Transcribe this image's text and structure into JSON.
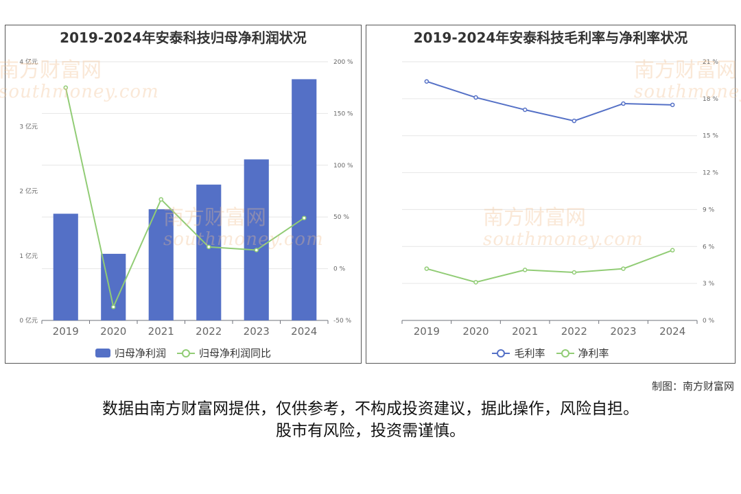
{
  "colors": {
    "bar": "#5470c6",
    "line_green": "#91cc75",
    "line_blue": "#5470c6",
    "grid": "#e6e6e6",
    "axis_text": "#666666"
  },
  "watermark": {
    "name": "南方财富网",
    "domain": "southmoney.com"
  },
  "credit": "制图：南方财富网",
  "disclaimer": {
    "line1": "数据由南方财富网提供，仅供参考，不构成投资建议，据此操作，风险自担。",
    "line2": "股市有风险，投资需谨慎。"
  },
  "chart_data": [
    {
      "type": "bar",
      "title": "2019-2024年安泰科技归母净利润状况",
      "categories": [
        "2019",
        "2020",
        "2021",
        "2022",
        "2023",
        "2024"
      ],
      "legend_position": "bottom",
      "grid": true,
      "y_left": {
        "ticks": [
          "0 亿元",
          "1 亿元",
          "2 亿元",
          "3 亿元",
          "4 亿元"
        ],
        "range": [
          0,
          4
        ]
      },
      "y_right": {
        "ticks": [
          "-50 %",
          "0 %",
          "50 %",
          "100 %",
          "150 %",
          "200 %"
        ],
        "range": [
          -50,
          200
        ]
      },
      "series": [
        {
          "name": "归母净利润",
          "type": "bar",
          "axis": "left",
          "color": "#5470c6",
          "values": [
            1.65,
            1.03,
            1.72,
            2.1,
            2.49,
            3.73
          ]
        },
        {
          "name": "归母净利润同比",
          "type": "line",
          "axis": "right",
          "color": "#91cc75",
          "values": [
            175,
            -37,
            67,
            21,
            18,
            49
          ]
        }
      ]
    },
    {
      "type": "line",
      "title": "2019-2024年安泰科技毛利率与净利率状况",
      "categories": [
        "2019",
        "2020",
        "2021",
        "2022",
        "2023",
        "2024"
      ],
      "legend_position": "bottom",
      "grid": true,
      "y_right": {
        "ticks": [
          "0 %",
          "3 %",
          "6 %",
          "9 %",
          "12 %",
          "15 %",
          "18 %",
          "21 %"
        ],
        "range": [
          0,
          21
        ]
      },
      "series": [
        {
          "name": "毛利率",
          "color": "#5470c6",
          "values": [
            19.4,
            18.1,
            17.1,
            16.2,
            17.6,
            17.5
          ]
        },
        {
          "name": "净利率",
          "color": "#91cc75",
          "values": [
            4.2,
            3.1,
            4.1,
            3.9,
            4.2,
            5.7
          ]
        }
      ]
    }
  ]
}
